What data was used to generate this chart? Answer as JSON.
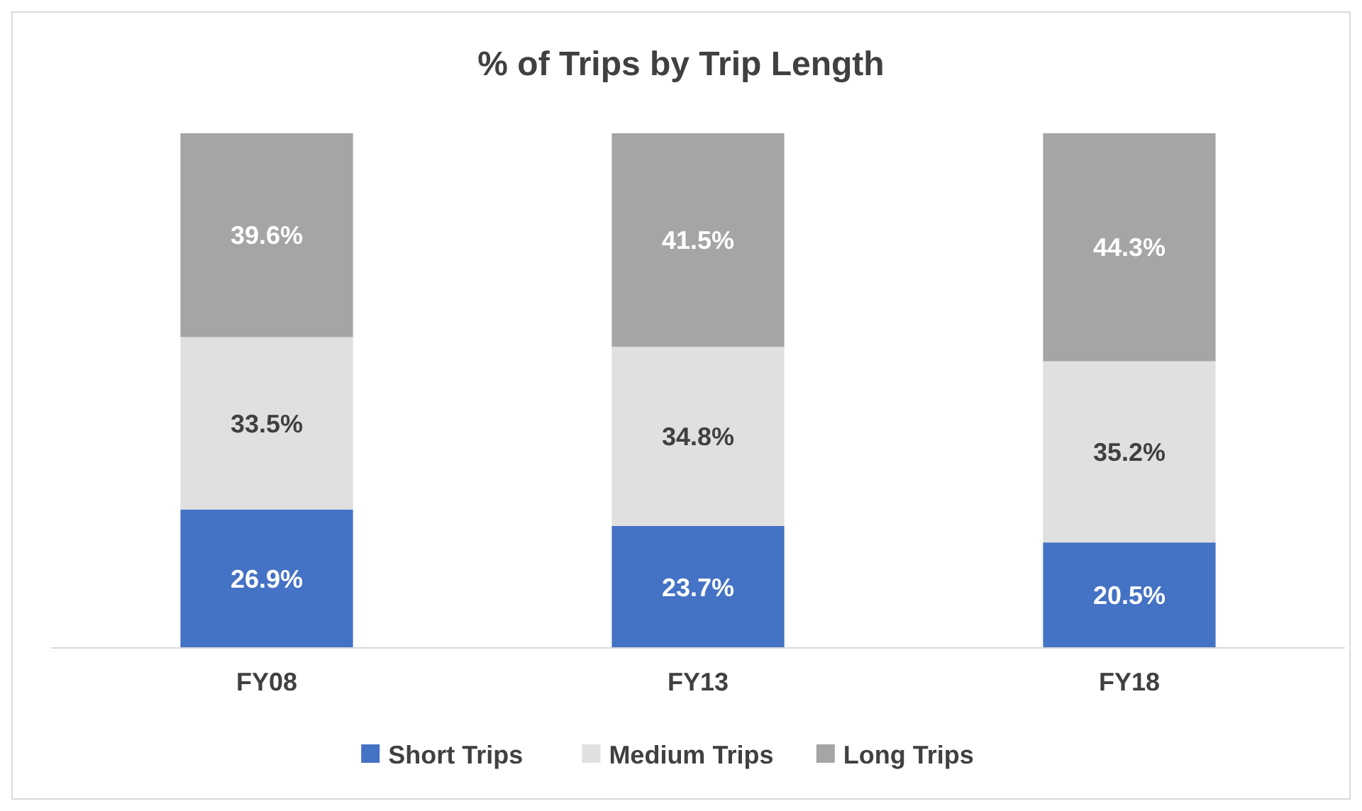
{
  "chart_data": {
    "type": "bar",
    "title": "% of Trips by Trip Length",
    "categories": [
      "FY08",
      "FY13",
      "FY18"
    ],
    "stacked": true,
    "ylim": [
      0,
      100
    ],
    "tick_labels": "x",
    "legend": "bottom",
    "series": [
      {
        "name": "Short Trips",
        "color": "#4472c4",
        "values": [
          26.9,
          23.7,
          20.5
        ],
        "value_labels": [
          "26.9%",
          "23.7%",
          "20.5%"
        ]
      },
      {
        "name": "Medium Trips",
        "color": "#e0e0e0",
        "values": [
          33.5,
          34.8,
          35.2
        ],
        "value_labels": [
          "33.5%",
          "34.8%",
          "35.2%"
        ]
      },
      {
        "name": "Long Trips",
        "color": "#a5a5a5",
        "values": [
          39.6,
          41.5,
          44.3
        ],
        "value_labels": [
          "39.6%",
          "41.5%",
          "44.3%"
        ]
      }
    ]
  }
}
